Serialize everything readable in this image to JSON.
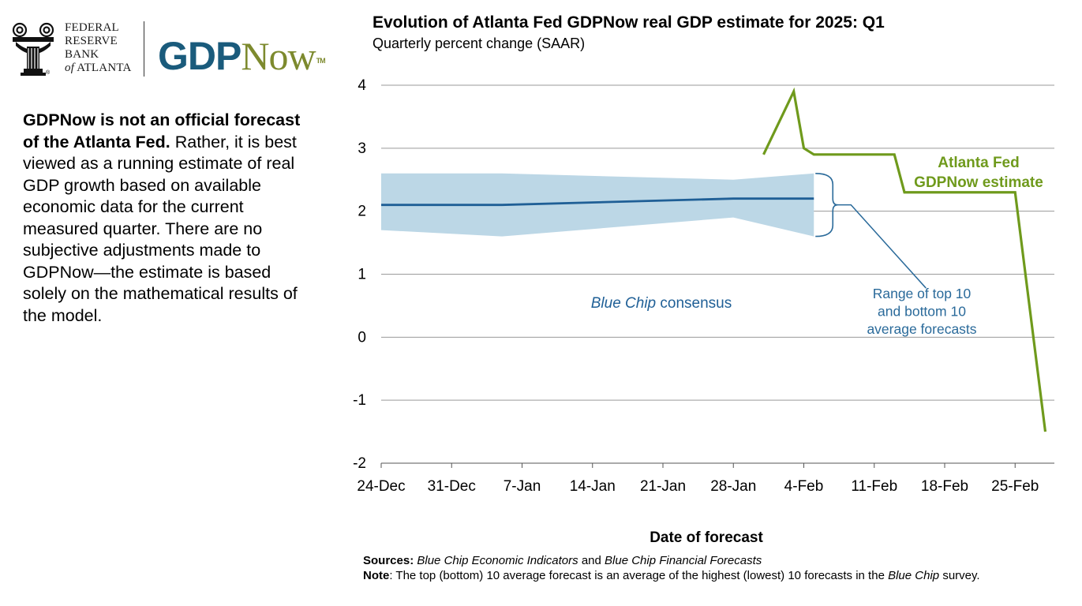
{
  "logo": {
    "frb_lines": [
      "FEDERAL",
      "RESERVE",
      "BANK"
    ],
    "frb_of": "of",
    "frb_city": "ATLANTA",
    "registered": "®",
    "product_gdp": "GDP",
    "product_now": "Now",
    "trademark": "TM"
  },
  "disclaimer": {
    "bold": "GDPNow is not an official forecast of the Atlanta Fed.",
    "body": "Rather, it is best viewed as a running estimate of real GDP growth based on available economic data for the current measured quarter. There are no subjective adjustments made to GDPNow—the estimate is based solely on the mathematical results of the model."
  },
  "footer": {
    "sources_label": "Sources:",
    "sources_src1": "Blue Chip Economic Indicators",
    "sources_and": "and",
    "sources_src2": "Blue Chip Financial Forecasts",
    "note_label": "Note",
    "note_text1": ": The top (bottom) 10 average forecast is an average of the highest (lowest) 10 forecasts in the",
    "note_italic": "Blue Chip",
    "note_text2": "survey."
  },
  "colors": {
    "gdpnow": "#6f9a1c",
    "bluechip": "#1f5f96",
    "band": "#bcd7e6",
    "grid": "#9a9a9a",
    "range_label": "#2a6a9a"
  },
  "chart_data": {
    "type": "line",
    "title": "Evolution of Atlanta Fed GDPNow real GDP estimate for 2025: Q1",
    "subtitle": "Quarterly percent change (SAAR)",
    "xlabel": "Date of forecast",
    "ylabel": "",
    "x_ticks": [
      "24-Dec",
      "31-Dec",
      "7-Jan",
      "14-Jan",
      "21-Jan",
      "28-Jan",
      "4-Feb",
      "11-Feb",
      "18-Feb",
      "25-Feb"
    ],
    "y_ticks": [
      "4",
      "3",
      "2",
      "1",
      "0",
      "-1",
      "-2"
    ],
    "ylim": [
      -2,
      4
    ],
    "x_range_days": [
      0,
      66
    ],
    "grid": "horizontal",
    "series": [
      {
        "name": "Atlanta Fed GDPNow estimate",
        "label_lines": [
          "Atlanta Fed",
          "GDPNow estimate"
        ],
        "x_days": [
          38,
          41,
          42,
          43,
          51,
          52,
          63,
          66
        ],
        "values": [
          2.9,
          3.9,
          3.0,
          2.9,
          2.9,
          2.3,
          2.3,
          -1.5
        ]
      },
      {
        "name": "Blue Chip consensus",
        "label_italic": "Blue Chip",
        "label_rest": " consensus",
        "x_days": [
          0,
          12,
          35,
          43
        ],
        "values": [
          2.1,
          2.1,
          2.2,
          2.2
        ]
      }
    ],
    "band": {
      "name": "Range of top 10 and bottom 10 average forecasts",
      "label_lines": [
        "Range of top 10",
        "and bottom 10",
        "average forecasts"
      ],
      "x_days": [
        0,
        12,
        35,
        43
      ],
      "upper": [
        2.6,
        2.6,
        2.5,
        2.6
      ],
      "lower": [
        1.7,
        1.6,
        1.9,
        1.6
      ]
    }
  }
}
